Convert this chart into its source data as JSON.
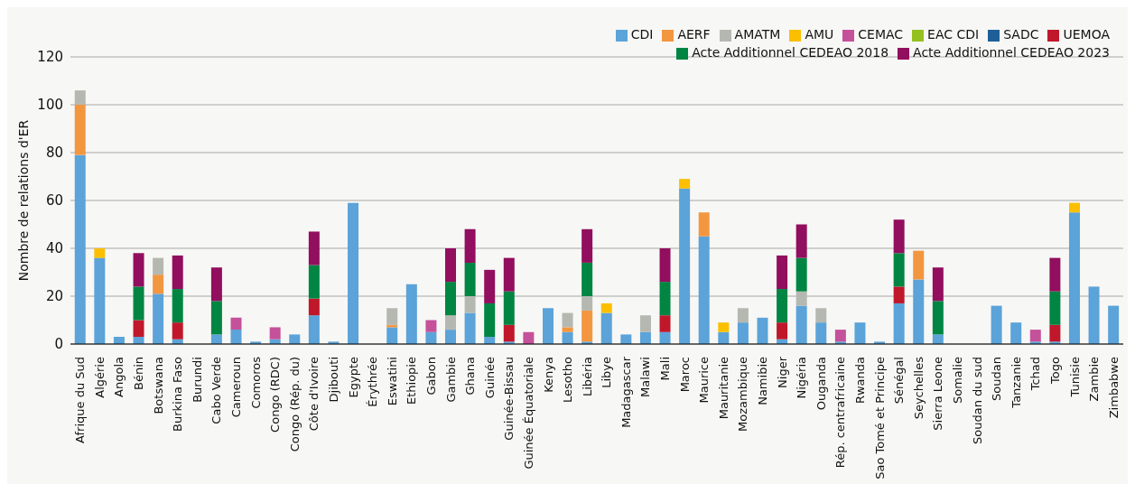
{
  "chart_data": {
    "type": "bar",
    "stacked": true,
    "ylabel": "Nombre de relations d'ER",
    "ylim": [
      0,
      120
    ],
    "yticks": [
      0,
      20,
      40,
      60,
      80,
      100,
      120
    ],
    "grid": "y",
    "legend": "top right",
    "categories": [
      "Afrique du Sud",
      "Algérie",
      "Angola",
      "Bénin",
      "Botswana",
      "Burkina Faso",
      "Burundi",
      "Cabo Verde",
      "Cameroun",
      "Comoros",
      "Congo (RDC)",
      "Congo (Rép. du)",
      "Côte d'Ivoire",
      "Djibouti",
      "Egypte",
      "Érythrée",
      "Eswatini",
      "Ethiopie",
      "Gabon",
      "Gambie",
      "Ghana",
      "Guinée",
      "Guinée-Bissau",
      "Guinée Équatoriale",
      "Kenya",
      "Lesotho",
      "Libéria",
      "Libye",
      "Madagascar",
      "Malawi",
      "Mali",
      "Maroc",
      "Maurice",
      "Mauritanie",
      "Mozambique",
      "Namibie",
      "Niger",
      "Nigéria",
      "Ouganda",
      "Rép. centrafricaine",
      "Rwanda",
      "Sao Tomé et Principe",
      "Sénégal",
      "Seychelles",
      "Sierra Leone",
      "Somalie",
      "Soudan du sud",
      "Soudan",
      "Tanzanie",
      "Tchad",
      "Togo",
      "Tunisie",
      "Zambie",
      "Zimbabwe"
    ],
    "series": [
      {
        "name": "CDI",
        "color": "#5ba3d9",
        "values": [
          79,
          36,
          3,
          3,
          21,
          2,
          0,
          4,
          6,
          1,
          2,
          4,
          12,
          1,
          59,
          0,
          7,
          25,
          5,
          6,
          13,
          3,
          1,
          0,
          15,
          5,
          1,
          13,
          4,
          5,
          5,
          65,
          45,
          5,
          9,
          11,
          2,
          16,
          9,
          1,
          9,
          1,
          17,
          27,
          4,
          0,
          0,
          16,
          9,
          1,
          1,
          55,
          24,
          16
        ]
      },
      {
        "name": "AERF",
        "color": "#f39640",
        "values": [
          21,
          0,
          0,
          0,
          8,
          0,
          0,
          0,
          0,
          0,
          0,
          0,
          0,
          0,
          0,
          0,
          1,
          0,
          0,
          0,
          0,
          0,
          0,
          0,
          0,
          2,
          13,
          0,
          0,
          0,
          0,
          0,
          10,
          0,
          0,
          0,
          0,
          0,
          0,
          0,
          0,
          0,
          0,
          12,
          0,
          0,
          0,
          0,
          0,
          0,
          0,
          0,
          0,
          0
        ]
      },
      {
        "name": "AMATM",
        "color": "#b5b8b1",
        "values": [
          6,
          0,
          0,
          0,
          7,
          0,
          0,
          0,
          0,
          0,
          0,
          0,
          0,
          0,
          0,
          0,
          7,
          0,
          0,
          6,
          7,
          0,
          0,
          0,
          0,
          6,
          6,
          0,
          0,
          7,
          0,
          0,
          0,
          0,
          6,
          0,
          0,
          6,
          6,
          0,
          0,
          0,
          0,
          0,
          0,
          0,
          0,
          0,
          0,
          0,
          0,
          0,
          0,
          0
        ]
      },
      {
        "name": "AMU",
        "color": "#fbbf00",
        "values": [
          0,
          4,
          0,
          0,
          0,
          0,
          0,
          0,
          0,
          0,
          0,
          0,
          0,
          0,
          0,
          0,
          0,
          0,
          0,
          0,
          0,
          0,
          0,
          0,
          0,
          0,
          0,
          4,
          0,
          0,
          0,
          4,
          0,
          4,
          0,
          0,
          0,
          0,
          0,
          0,
          0,
          0,
          0,
          0,
          0,
          0,
          0,
          0,
          0,
          0,
          0,
          4,
          0,
          0
        ]
      },
      {
        "name": "CEMAC",
        "color": "#c4519a",
        "values": [
          0,
          0,
          0,
          0,
          0,
          0,
          0,
          0,
          5,
          0,
          5,
          0,
          0,
          0,
          0,
          0,
          0,
          0,
          5,
          0,
          0,
          0,
          0,
          5,
          0,
          0,
          0,
          0,
          0,
          0,
          0,
          0,
          0,
          0,
          0,
          0,
          0,
          0,
          0,
          5,
          0,
          0,
          0,
          0,
          0,
          0,
          0,
          0,
          0,
          5,
          0,
          0,
          0,
          0
        ]
      },
      {
        "name": "EAC CDI",
        "color": "#95c11f",
        "values": [
          0,
          0,
          0,
          0,
          0,
          0,
          0,
          0,
          0,
          0,
          0,
          0,
          0,
          0,
          0,
          0,
          0,
          0,
          0,
          0,
          0,
          0,
          0,
          0,
          0,
          0,
          0,
          0,
          0,
          0,
          0,
          0,
          0,
          0,
          0,
          0,
          0,
          0,
          0,
          0,
          0,
          0,
          0,
          0,
          0,
          0,
          0,
          0,
          0,
          0,
          0,
          0,
          0,
          0
        ]
      },
      {
        "name": "SADC",
        "color": "#1f5f99",
        "values": [
          0,
          0,
          0,
          0,
          0,
          0,
          0,
          0,
          0,
          0,
          0,
          0,
          0,
          0,
          0,
          0,
          0,
          0,
          0,
          0,
          0,
          0,
          0,
          0,
          0,
          0,
          0,
          0,
          0,
          0,
          0,
          0,
          0,
          0,
          0,
          0,
          0,
          0,
          0,
          0,
          0,
          0,
          0,
          0,
          0,
          0,
          0,
          0,
          0,
          0,
          0,
          0,
          0,
          0
        ]
      },
      {
        "name": "UEMOA",
        "color": "#c0172b",
        "values": [
          0,
          0,
          0,
          7,
          0,
          7,
          0,
          0,
          0,
          0,
          0,
          0,
          7,
          0,
          0,
          0,
          0,
          0,
          0,
          0,
          0,
          0,
          7,
          0,
          0,
          0,
          0,
          0,
          0,
          0,
          7,
          0,
          0,
          0,
          0,
          0,
          7,
          0,
          0,
          0,
          0,
          0,
          7,
          0,
          0,
          0,
          0,
          0,
          0,
          0,
          7,
          0,
          0,
          0
        ]
      },
      {
        "name": "Acte Additionnel CEDEAO 2018",
        "color": "#008542",
        "values": [
          0,
          0,
          0,
          14,
          0,
          14,
          0,
          14,
          0,
          0,
          0,
          0,
          14,
          0,
          0,
          0,
          0,
          0,
          0,
          14,
          14,
          14,
          14,
          0,
          0,
          0,
          14,
          0,
          0,
          0,
          14,
          0,
          0,
          0,
          0,
          0,
          14,
          14,
          0,
          0,
          0,
          0,
          14,
          0,
          14,
          0,
          0,
          0,
          0,
          0,
          14,
          0,
          0,
          0
        ]
      },
      {
        "name": "Acte Additionnel CEDEAO 2023",
        "color": "#920e5e",
        "values": [
          0,
          0,
          0,
          14,
          0,
          14,
          0,
          14,
          0,
          0,
          0,
          0,
          14,
          0,
          0,
          0,
          0,
          0,
          0,
          14,
          14,
          14,
          14,
          0,
          0,
          0,
          14,
          0,
          0,
          0,
          14,
          0,
          0,
          0,
          0,
          0,
          14,
          14,
          0,
          0,
          0,
          0,
          14,
          0,
          14,
          0,
          0,
          0,
          0,
          0,
          14,
          0,
          0,
          0
        ]
      }
    ]
  }
}
